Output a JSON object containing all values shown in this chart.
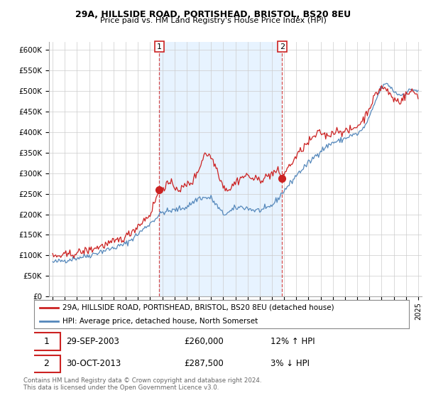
{
  "title1": "29A, HILLSIDE ROAD, PORTISHEAD, BRISTOL, BS20 8EU",
  "title2": "Price paid vs. HM Land Registry's House Price Index (HPI)",
  "ylabel_ticks": [
    "£0",
    "£50K",
    "£100K",
    "£150K",
    "£200K",
    "£250K",
    "£300K",
    "£350K",
    "£400K",
    "£450K",
    "£500K",
    "£550K",
    "£600K"
  ],
  "ytick_values": [
    0,
    50000,
    100000,
    150000,
    200000,
    250000,
    300000,
    350000,
    400000,
    450000,
    500000,
    550000,
    600000
  ],
  "ylim": [
    0,
    620000
  ],
  "xlim_start": 1994.7,
  "xlim_end": 2025.3,
  "hpi_color": "#5588bb",
  "price_color": "#cc2222",
  "vline_color": "#cc2222",
  "shade_color": "#ddeeff",
  "marker1_x": 2003.75,
  "marker1_y": 260000,
  "marker2_x": 2013.83,
  "marker2_y": 287500,
  "legend_line1": "29A, HILLSIDE ROAD, PORTISHEAD, BRISTOL, BS20 8EU (detached house)",
  "legend_line2": "HPI: Average price, detached house, North Somerset",
  "annotation1_date": "29-SEP-2003",
  "annotation1_price": "£260,000",
  "annotation1_hpi": "12% ↑ HPI",
  "annotation2_date": "30-OCT-2013",
  "annotation2_price": "£287,500",
  "annotation2_hpi": "3% ↓ HPI",
  "footer": "Contains HM Land Registry data © Crown copyright and database right 2024.\nThis data is licensed under the Open Government Licence v3.0.",
  "background_color": "#ffffff",
  "grid_color": "#cccccc"
}
